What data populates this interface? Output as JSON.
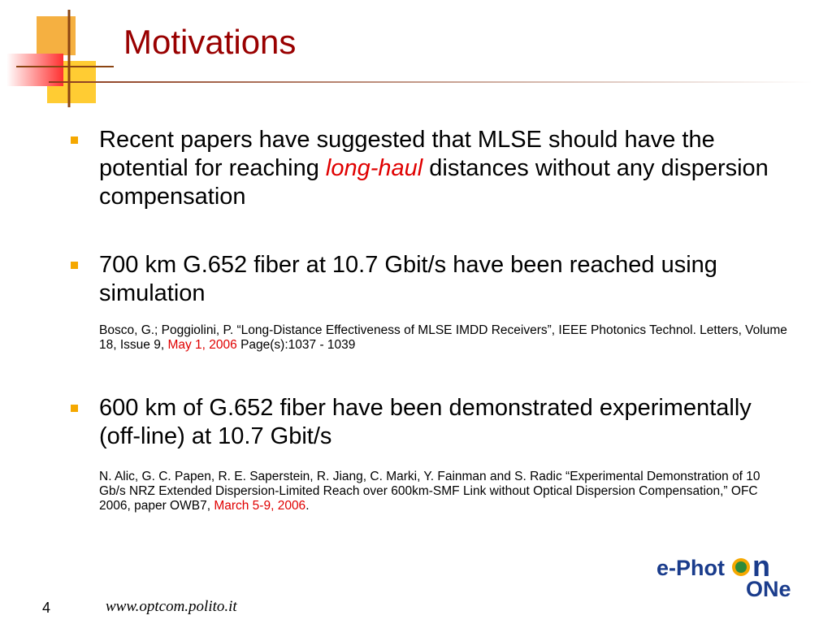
{
  "title": "Motivations",
  "bullets": [
    {
      "segments": [
        "Recent papers have suggested that MLSE should have the potential for reaching ",
        "long-haul",
        " distances without any dispersion compensation"
      ]
    },
    {
      "segments": [
        "700 km G.652 fiber at 10.7 Gbit/s have been reached using simulation"
      ],
      "reference": [
        "Bosco, G.; Poggiolini, P. “Long-Distance Effectiveness of MLSE IMDD Receivers”, IEEE Photonics Technol. Letters,  Volume 18,  Issue 9, ",
        "May 1, 2006",
        " Page(s):1037 - 1039"
      ]
    },
    {
      "segments": [
        "600 km of G.652 fiber have been demonstrated experimentally (off-line) at 10.7 Gbit/s"
      ],
      "reference": [
        "N. Alic, G. C. Papen, R. E. Saperstein, R. Jiang, C. Marki, Y. Fainman and S. Radic “Experimental Demonstration of 10 Gb/s NRZ Extended Dispersion-Limited Reach over 600km-SMF Link without Optical Dispersion Compensation,” OFC 2006, paper OWB7, ",
        "March 5-9, 2006",
        "."
      ]
    }
  ],
  "logo": {
    "left": "e-Phot",
    "top": "n",
    "bottom": "ONe"
  },
  "footer": {
    "page": "4",
    "url": "www.optcom.polito.it"
  }
}
